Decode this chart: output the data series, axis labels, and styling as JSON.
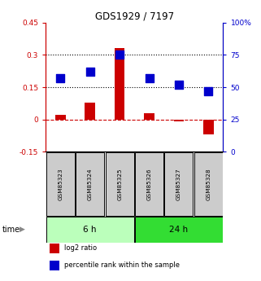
{
  "title": "GDS1929 / 7197",
  "samples": [
    "GSM85323",
    "GSM85324",
    "GSM85325",
    "GSM85326",
    "GSM85327",
    "GSM85328"
  ],
  "log2_ratio": [
    0.02,
    0.08,
    0.33,
    0.03,
    -0.01,
    -0.07
  ],
  "percentile_rank": [
    57,
    62,
    75,
    57,
    52,
    47
  ],
  "groups": [
    {
      "label": "6 h",
      "indices": [
        0,
        1,
        2
      ],
      "color": "#bbffbb"
    },
    {
      "label": "24 h",
      "indices": [
        3,
        4,
        5
      ],
      "color": "#33dd33"
    }
  ],
  "ylim_left": [
    -0.15,
    0.45
  ],
  "ylim_right": [
    0,
    100
  ],
  "yticks_left": [
    -0.15,
    0.0,
    0.15,
    0.3,
    0.45
  ],
  "yticks_right": [
    0,
    25,
    50,
    75,
    100
  ],
  "bar_color": "#cc0000",
  "scatter_color": "#0000cc",
  "dashed_line_color": "#cc0000",
  "dotted_line_color": "#000000",
  "bar_width": 0.35,
  "scatter_size": 45,
  "title_color": "#000000",
  "left_axis_color": "#cc0000",
  "right_axis_color": "#0000cc",
  "bg_color": "#ffffff",
  "sample_box_color": "#cccccc",
  "legend_items": [
    {
      "label": "log2 ratio",
      "color": "#cc0000"
    },
    {
      "label": "percentile rank within the sample",
      "color": "#0000cc"
    }
  ]
}
